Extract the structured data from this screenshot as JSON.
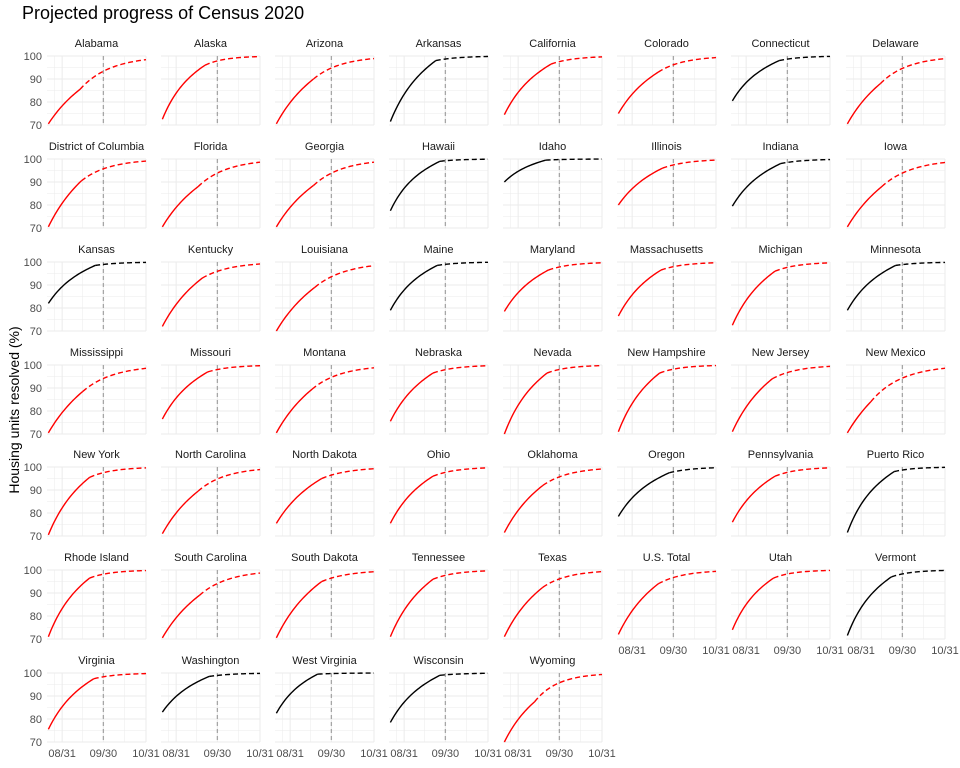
{
  "chart_data": {
    "type": "line",
    "title": "Projected progress of Census 2020",
    "xlabel": "",
    "ylabel": "Housing units resolved (%)",
    "facet_layout": "8 columns, 7 rows",
    "x_ticks": [
      "08/31",
      "09/30",
      "10/31"
    ],
    "x_tick_dates": [
      "2020-08-31",
      "2020-09-30",
      "2020-10-31"
    ],
    "xlim": [
      "2020-08-20",
      "2020-10-31"
    ],
    "y_ticks": [
      70,
      80,
      90,
      100
    ],
    "ylim": [
      70,
      100
    ],
    "reference_line_date": "2020-09-30",
    "grid": true,
    "projection_style": "dashed",
    "series_colors": {
      "red": "#ff0000",
      "black": "#000000",
      "reference": "#a6a6a6",
      "grid": "#ebebeb"
    },
    "panels": [
      {
        "name": "Alabama",
        "color": "red",
        "start": 70.5,
        "end_actual": 85.5,
        "last_actual": "2020-09-13",
        "k": 0.046
      },
      {
        "name": "Alaska",
        "color": "red",
        "start": 72.5,
        "end_actual": 96.0,
        "last_actual": "2020-09-21",
        "k": 0.07
      },
      {
        "name": "Arizona",
        "color": "red",
        "start": 70.5,
        "end_actual": 90.0,
        "last_actual": "2020-09-17",
        "k": 0.05
      },
      {
        "name": "Arkansas",
        "color": "black",
        "start": 71.5,
        "end_actual": 98.0,
        "last_actual": "2020-09-23",
        "k": 0.06
      },
      {
        "name": "California",
        "color": "red",
        "start": 74.5,
        "end_actual": 96.5,
        "last_actual": "2020-09-24",
        "k": 0.06
      },
      {
        "name": "Colorado",
        "color": "red",
        "start": 75.0,
        "end_actual": 93.0,
        "last_actual": "2020-09-19",
        "k": 0.055
      },
      {
        "name": "Connecticut",
        "color": "black",
        "start": 80.5,
        "end_actual": 98.0,
        "last_actual": "2020-09-24",
        "k": 0.065
      },
      {
        "name": "Delaware",
        "color": "red",
        "start": 70.5,
        "end_actual": 88.0,
        "last_actual": "2020-09-14",
        "k": 0.05
      },
      {
        "name": "District of Columbia",
        "color": "red",
        "start": 70.5,
        "end_actual": 90.5,
        "last_actual": "2020-09-14",
        "k": 0.05
      },
      {
        "name": "Florida",
        "color": "red",
        "start": 70.5,
        "end_actual": 88.0,
        "last_actual": "2020-09-16",
        "k": 0.048
      },
      {
        "name": "Georgia",
        "color": "red",
        "start": 70.5,
        "end_actual": 88.5,
        "last_actual": "2020-09-17",
        "k": 0.048
      },
      {
        "name": "Hawaii",
        "color": "black",
        "start": 77.5,
        "end_actual": 99.0,
        "last_actual": "2020-09-26",
        "k": 0.07
      },
      {
        "name": "Idaho",
        "color": "black",
        "start": 90.0,
        "end_actual": 99.5,
        "last_actual": "2020-09-20",
        "k": 0.07
      },
      {
        "name": "Illinois",
        "color": "red",
        "start": 80.0,
        "end_actual": 96.0,
        "last_actual": "2020-09-22",
        "k": 0.055
      },
      {
        "name": "Indiana",
        "color": "black",
        "start": 79.5,
        "end_actual": 98.0,
        "last_actual": "2020-09-25",
        "k": 0.06
      },
      {
        "name": "Iowa",
        "color": "red",
        "start": 70.5,
        "end_actual": 88.0,
        "last_actual": "2020-09-15",
        "k": 0.045
      },
      {
        "name": "Kansas",
        "color": "black",
        "start": 82.0,
        "end_actual": 98.5,
        "last_actual": "2020-09-24",
        "k": 0.06
      },
      {
        "name": "Kentucky",
        "color": "red",
        "start": 72.0,
        "end_actual": 93.0,
        "last_actual": "2020-09-19",
        "k": 0.05
      },
      {
        "name": "Louisiana",
        "color": "red",
        "start": 70.0,
        "end_actual": 89.0,
        "last_actual": "2020-09-18",
        "k": 0.045
      },
      {
        "name": "Maine",
        "color": "black",
        "start": 79.0,
        "end_actual": 98.5,
        "last_actual": "2020-09-24",
        "k": 0.065
      },
      {
        "name": "Maryland",
        "color": "red",
        "start": 78.5,
        "end_actual": 96.5,
        "last_actual": "2020-09-22",
        "k": 0.06
      },
      {
        "name": "Massachusetts",
        "color": "red",
        "start": 76.5,
        "end_actual": 96.5,
        "last_actual": "2020-09-21",
        "k": 0.06
      },
      {
        "name": "Michigan",
        "color": "red",
        "start": 72.5,
        "end_actual": 96.0,
        "last_actual": "2020-09-21",
        "k": 0.06
      },
      {
        "name": "Minnesota",
        "color": "black",
        "start": 79.0,
        "end_actual": 98.5,
        "last_actual": "2020-09-25",
        "k": 0.06
      },
      {
        "name": "Mississippi",
        "color": "red",
        "start": 70.5,
        "end_actual": 88.5,
        "last_actual": "2020-09-15",
        "k": 0.045
      },
      {
        "name": "Missouri",
        "color": "red",
        "start": 76.5,
        "end_actual": 97.0,
        "last_actual": "2020-09-23",
        "k": 0.06
      },
      {
        "name": "Montana",
        "color": "red",
        "start": 70.5,
        "end_actual": 89.5,
        "last_actual": "2020-09-16",
        "k": 0.048
      },
      {
        "name": "Nebraska",
        "color": "red",
        "start": 75.5,
        "end_actual": 96.5,
        "last_actual": "2020-09-21",
        "k": 0.06
      },
      {
        "name": "Nevada",
        "color": "red",
        "start": 70.0,
        "end_actual": 96.5,
        "last_actual": "2020-09-21",
        "k": 0.065
      },
      {
        "name": "New Hampshire",
        "color": "red",
        "start": 71.0,
        "end_actual": 96.5,
        "last_actual": "2020-09-20",
        "k": 0.065
      },
      {
        "name": "New Jersey",
        "color": "red",
        "start": 71.0,
        "end_actual": 94.0,
        "last_actual": "2020-09-19",
        "k": 0.055
      },
      {
        "name": "New Mexico",
        "color": "red",
        "start": 70.5,
        "end_actual": 84.0,
        "last_actual": "2020-09-07",
        "k": 0.045
      },
      {
        "name": "New York",
        "color": "red",
        "start": 70.5,
        "end_actual": 95.5,
        "last_actual": "2020-09-20",
        "k": 0.06
      },
      {
        "name": "North Carolina",
        "color": "red",
        "start": 71.0,
        "end_actual": 89.5,
        "last_actual": "2020-09-16",
        "k": 0.05
      },
      {
        "name": "North Dakota",
        "color": "red",
        "start": 75.5,
        "end_actual": 95.0,
        "last_actual": "2020-09-23",
        "k": 0.05
      },
      {
        "name": "Ohio",
        "color": "red",
        "start": 75.5,
        "end_actual": 96.0,
        "last_actual": "2020-09-21",
        "k": 0.06
      },
      {
        "name": "Oklahoma",
        "color": "red",
        "start": 71.5,
        "end_actual": 92.0,
        "last_actual": "2020-09-18",
        "k": 0.052
      },
      {
        "name": "Oregon",
        "color": "black",
        "start": 78.5,
        "end_actual": 97.5,
        "last_actual": "2020-09-27",
        "k": 0.06
      },
      {
        "name": "Pennsylvania",
        "color": "red",
        "start": 76.0,
        "end_actual": 96.0,
        "last_actual": "2020-09-21",
        "k": 0.06
      },
      {
        "name": "Puerto Rico",
        "color": "black",
        "start": 71.5,
        "end_actual": 98.0,
        "last_actual": "2020-09-24",
        "k": 0.07
      },
      {
        "name": "Rhode Island",
        "color": "red",
        "start": 71.0,
        "end_actual": 96.5,
        "last_actual": "2020-09-20",
        "k": 0.065
      },
      {
        "name": "South Carolina",
        "color": "red",
        "start": 70.5,
        "end_actual": 89.0,
        "last_actual": "2020-09-17",
        "k": 0.048
      },
      {
        "name": "South Dakota",
        "color": "red",
        "start": 70.5,
        "end_actual": 95.0,
        "last_actual": "2020-09-23",
        "k": 0.05
      },
      {
        "name": "Tennessee",
        "color": "red",
        "start": 71.0,
        "end_actual": 96.0,
        "last_actual": "2020-09-21",
        "k": 0.06
      },
      {
        "name": "Texas",
        "color": "red",
        "start": 71.0,
        "end_actual": 92.5,
        "last_actual": "2020-09-18",
        "k": 0.055
      },
      {
        "name": "U.S. Total",
        "color": "red",
        "start": 72.0,
        "end_actual": 94.0,
        "last_actual": "2020-09-19",
        "k": 0.055
      },
      {
        "name": "Utah",
        "color": "red",
        "start": 74.0,
        "end_actual": 96.5,
        "last_actual": "2020-09-20",
        "k": 0.07
      },
      {
        "name": "Vermont",
        "color": "black",
        "start": 71.5,
        "end_actual": 97.0,
        "last_actual": "2020-09-22",
        "k": 0.07
      },
      {
        "name": "Virginia",
        "color": "red",
        "start": 75.5,
        "end_actual": 97.5,
        "last_actual": "2020-09-23",
        "k": 0.06
      },
      {
        "name": "Washington",
        "color": "black",
        "start": 83.0,
        "end_actual": 98.5,
        "last_actual": "2020-09-24",
        "k": 0.06
      },
      {
        "name": "West Virginia",
        "color": "black",
        "start": 82.5,
        "end_actual": 99.5,
        "last_actual": "2020-09-20",
        "k": 0.07
      },
      {
        "name": "Wisconsin",
        "color": "black",
        "start": 78.5,
        "end_actual": 99.0,
        "last_actual": "2020-09-26",
        "k": 0.06
      },
      {
        "name": "Wyoming",
        "color": "red",
        "start": 70.0,
        "end_actual": 87.5,
        "last_actual": "2020-09-12",
        "k": 0.06
      }
    ]
  }
}
